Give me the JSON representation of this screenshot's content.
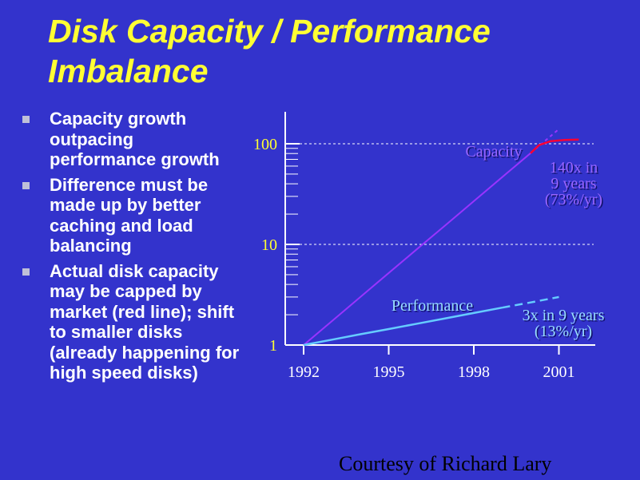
{
  "title": {
    "line1": "Disk Capacity / Performance",
    "line2": "Imbalance"
  },
  "bullets": [
    {
      "lines": [
        "Capacity growth",
        "outpacing",
        "performance growth"
      ]
    },
    {
      "lines": [
        "Difference must be",
        "made up by better",
        "caching and load",
        "balancing"
      ]
    },
    {
      "lines": [
        "Actual disk capacity",
        "may be capped by",
        "market (red line); shift",
        "to smaller disks",
        "(already happening for",
        "high speed disks)"
      ]
    }
  ],
  "credit": "Courtesy of Richard Lary",
  "colors": {
    "background": "#3333cc",
    "title": "#ffff33",
    "capacity": "#9933ff",
    "capacity_capped": "#ff0033",
    "performance": "#66ccff",
    "axis": "#ffffff"
  },
  "chart_data": {
    "type": "line",
    "title": "",
    "xlabel": "",
    "ylabel": "",
    "yscale": "log",
    "ylim": [
      1,
      100
    ],
    "xlim": [
      1992,
      2002
    ],
    "y_ticks": [
      "1",
      "10",
      "100"
    ],
    "x_ticks": [
      "1992",
      "1995",
      "1998",
      "2001"
    ],
    "grid": true,
    "series": [
      {
        "name": "Capacity",
        "x": [
          1992,
          1993,
          1994,
          1995,
          1996,
          1997,
          1998,
          1999,
          2000
        ],
        "y": [
          1.0,
          1.73,
          3.0,
          5.2,
          9.0,
          15.5,
          26.9,
          46.6,
          80.6
        ],
        "projection": {
          "x": [
            2000,
            2001
          ],
          "y": [
            80.6,
            140
          ]
        },
        "capped": {
          "x": [
            2000,
            2000.3,
            2000.7,
            2001.2,
            2001.7
          ],
          "y": [
            80.6,
            97,
            106,
            109,
            110
          ]
        }
      },
      {
        "name": "Performance",
        "x": [
          1992,
          1993,
          1994,
          1995,
          1996,
          1997,
          1998,
          1999
        ],
        "y": [
          1.0,
          1.13,
          1.28,
          1.44,
          1.63,
          1.84,
          2.08,
          2.35
        ],
        "projection": {
          "x": [
            1999,
            2000,
            2001
          ],
          "y": [
            2.35,
            2.65,
            3.0
          ]
        }
      }
    ],
    "annotations": [
      {
        "name": "capacity-label",
        "text": "Capacity"
      },
      {
        "name": "capacity-growth",
        "lines": [
          "140x in",
          "9 years",
          "(73%/yr)"
        ]
      },
      {
        "name": "performance-label",
        "text": "Performance"
      },
      {
        "name": "performance-growth",
        "lines": [
          "3x in 9 years",
          "(13%/yr)"
        ]
      }
    ]
  }
}
